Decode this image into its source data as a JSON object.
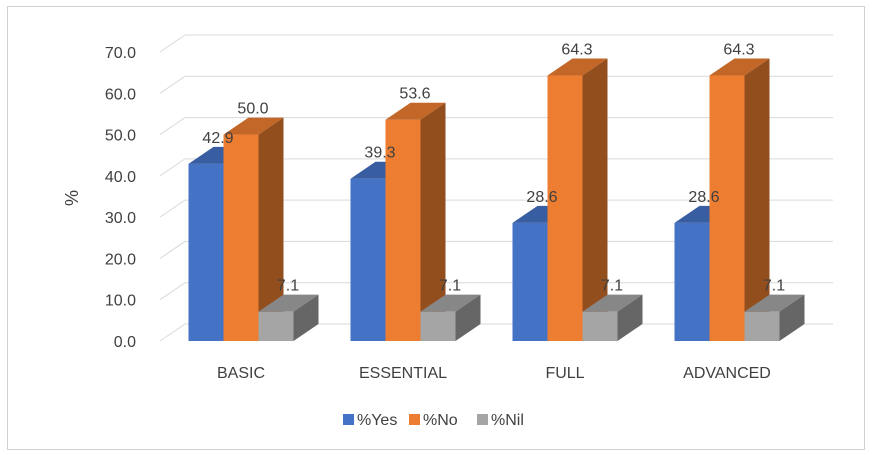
{
  "chart_data": {
    "type": "bar",
    "title": "",
    "xlabel": "",
    "ylabel": "%",
    "ylim": [
      0,
      70
    ],
    "ytick_step": 10,
    "ytick_labels": [
      "0.0",
      "10.0",
      "20.0",
      "30.0",
      "40.0",
      "50.0",
      "60.0",
      "70.0"
    ],
    "categories": [
      "BASIC",
      "ESSENTIAL",
      "FULL",
      "ADVANCED"
    ],
    "series": [
      {
        "name": "%Yes",
        "values": [
          42.9,
          39.3,
          28.6,
          28.6
        ],
        "value_labels": [
          "42.9",
          "39.3",
          "28.6",
          "28.6"
        ],
        "color": "#4472C4"
      },
      {
        "name": "%No",
        "values": [
          50.0,
          53.6,
          64.3,
          64.3
        ],
        "value_labels": [
          "50.0",
          "53.6",
          "64.3",
          "64.3"
        ],
        "color": "#ED7D31"
      },
      {
        "name": "%Nil",
        "values": [
          7.1,
          7.1,
          7.1,
          7.1
        ],
        "value_labels": [
          "7.1",
          "7.1",
          "7.1",
          "7.1"
        ],
        "color": "#A5A5A5"
      }
    ],
    "grid": true,
    "three_d": true,
    "legend_position": "bottom"
  }
}
